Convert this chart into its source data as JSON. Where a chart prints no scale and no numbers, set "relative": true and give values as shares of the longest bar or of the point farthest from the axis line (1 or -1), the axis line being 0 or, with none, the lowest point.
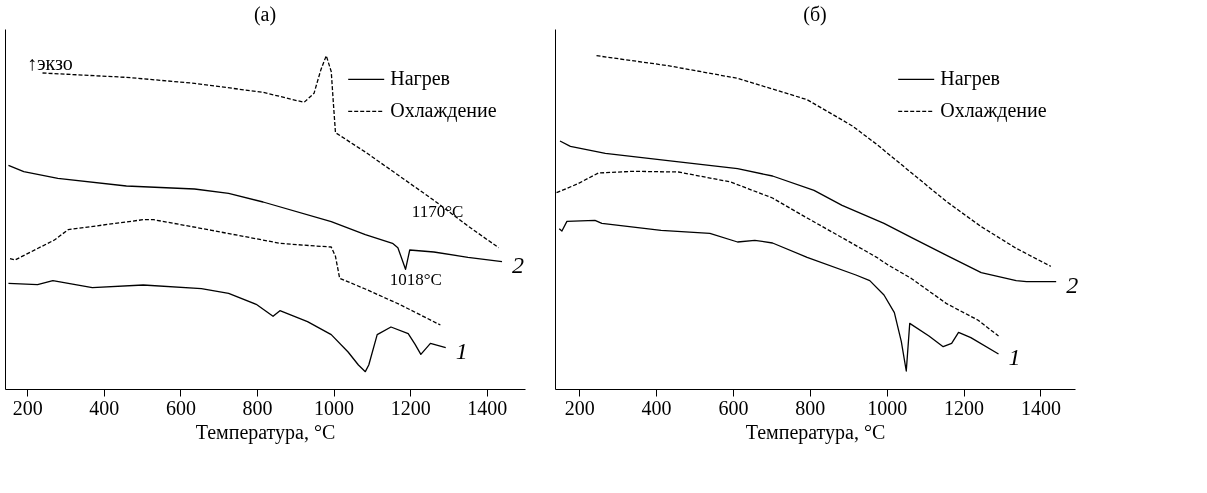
{
  "chart_data": [
    {
      "type": "line",
      "title": "(а)",
      "xlabel": "Температура, °C",
      "ylabel": "↑экзо",
      "relative": true,
      "tick_labels": "x",
      "legend": "top right",
      "grid": false,
      "marker": "none",
      "xlim": [
        142,
        1500
      ],
      "xticks": [
        200,
        400,
        600,
        800,
        1000,
        1200,
        1400
      ],
      "series": [
        {
          "name": "Нагрев",
          "color": "#000000",
          "line_style": "solid",
          "x": [
            151,
            191,
            280,
            459,
            637,
            726,
            816,
            994,
            1083,
            1154,
            1168,
            1188,
            1199,
            1262,
            1351,
            1440
          ],
          "values": [
            0.671,
            0.652,
            0.632,
            0.609,
            0.6,
            0.587,
            0.561,
            0.502,
            0.463,
            0.437,
            0.424,
            0.359,
            0.417,
            0.411,
            0.395,
            0.382
          ]
        },
        {
          "name": "Охлаждение",
          "color": "#000000",
          "line_style": "dashed",
          "x": [
            240,
            459,
            637,
            816,
            923,
            949,
            967,
            981,
            994,
            999,
            1005,
            1083,
            1172,
            1261,
            1351,
            1431
          ],
          "values": [
            0.948,
            0.935,
            0.917,
            0.89,
            0.86,
            0.887,
            0.958,
            1.0,
            0.952,
            0.867,
            0.769,
            0.711,
            0.639,
            0.567,
            0.489,
            0.424
          ]
        },
        {
          "name": "Нагрев",
          "color": "#000000",
          "line_style": "solid",
          "x": [
            151,
            227,
            267,
            370,
            503,
            655,
            726,
            798,
            842,
            860,
            932,
            994,
            1038,
            1065,
            1083,
            1092,
            1114,
            1150,
            1195,
            1213,
            1228,
            1253,
            1293
          ],
          "values": [
            0.317,
            0.313,
            0.325,
            0.304,
            0.312,
            0.301,
            0.287,
            0.254,
            0.218,
            0.235,
            0.202,
            0.163,
            0.111,
            0.072,
            0.052,
            0.072,
            0.163,
            0.186,
            0.166,
            0.134,
            0.104,
            0.137,
            0.124
          ]
        },
        {
          "name": "Охлаждение",
          "color": "#000000",
          "line_style": "dashed",
          "x": [
            155,
            168,
            271,
            307,
            503,
            530,
            682,
            860,
            940,
            994,
            1005,
            1016,
            1083,
            1172,
            1279
          ],
          "values": [
            0.391,
            0.387,
            0.447,
            0.478,
            0.508,
            0.508,
            0.476,
            0.437,
            0.43,
            0.426,
            0.398,
            0.332,
            0.3,
            0.254,
            0.192
          ]
        }
      ],
      "annotations": [
        {
          "text": "1170°C",
          "x": 1168,
          "y": 0.424
        },
        {
          "text": "1018°C",
          "x": 1016,
          "y": 0.332
        },
        {
          "text": "2",
          "x": 1440,
          "y": 0.382
        },
        {
          "text": "1",
          "x": 1293,
          "y": 0.124
        }
      ]
    },
    {
      "type": "line",
      "title": "(б)",
      "xlabel": "Температура, °C",
      "relative": true,
      "tick_labels": "x",
      "legend": "top right",
      "grid": false,
      "marker": "none",
      "xlim": [
        137,
        1490
      ],
      "xticks": [
        200,
        400,
        600,
        800,
        1000,
        1200,
        1400
      ],
      "series": [
        {
          "name": "Нагрев",
          "color": "#000000",
          "line_style": "solid",
          "x": [
            150,
            177,
            268,
            431,
            612,
            703,
            811,
            884,
            993,
            1065,
            1156,
            1246,
            1337,
            1364,
            1441
          ],
          "values": [
            0.744,
            0.728,
            0.707,
            0.685,
            0.661,
            0.639,
            0.596,
            0.551,
            0.497,
            0.454,
            0.401,
            0.349,
            0.325,
            0.322,
            0.322
          ]
        },
        {
          "name": "Охлаждение",
          "color": "#000000",
          "line_style": "dashed",
          "x": [
            245,
            431,
            612,
            793,
            911,
            974,
            1065,
            1156,
            1246,
            1337,
            1427
          ],
          "values": [
            1.0,
            0.97,
            0.932,
            0.868,
            0.789,
            0.734,
            0.648,
            0.562,
            0.487,
            0.422,
            0.368
          ]
        },
        {
          "name": "Нагрев",
          "color": "#000000",
          "line_style": "solid",
          "x": [
            148,
            155,
            168,
            241,
            259,
            413,
            540,
            612,
            657,
            703,
            793,
            920,
            956,
            993,
            1020,
            1038,
            1051,
            1060,
            1110,
            1147,
            1169,
            1187,
            1219,
            1291
          ],
          "values": [
            0.481,
            0.474,
            0.503,
            0.506,
            0.497,
            0.476,
            0.467,
            0.441,
            0.446,
            0.438,
            0.395,
            0.342,
            0.325,
            0.282,
            0.229,
            0.143,
            0.054,
            0.197,
            0.159,
            0.127,
            0.137,
            0.17,
            0.154,
            0.105
          ]
        },
        {
          "name": "Охлаждение",
          "color": "#000000",
          "line_style": "dashed",
          "x": [
            141,
            195,
            250,
            340,
            458,
            594,
            703,
            793,
            884,
            974,
            1001,
            1065,
            1156,
            1237,
            1291
          ],
          "values": [
            0.589,
            0.615,
            0.648,
            0.653,
            0.651,
            0.621,
            0.573,
            0.513,
            0.454,
            0.395,
            0.374,
            0.331,
            0.256,
            0.207,
            0.159
          ]
        }
      ],
      "annotations": [
        {
          "text": "2",
          "x": 1441,
          "y": 0.322
        },
        {
          "text": "1",
          "x": 1291,
          "y": 0.105
        }
      ]
    }
  ]
}
